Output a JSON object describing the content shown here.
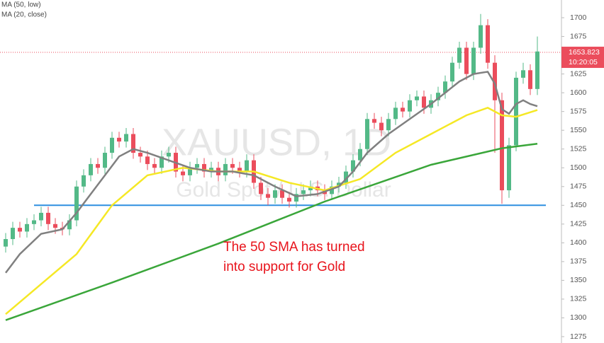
{
  "chart_data": {
    "type": "candlestick",
    "watermark": "XAUUSD, 1D",
    "watermark_subtitle": "Gold Spot / U.S. Dollar",
    "annotation": [
      "The 50 SMA has turned",
      "into support for Gold"
    ],
    "annotation_color": "#e8141c",
    "up_color": "#53b987",
    "down_color": "#eb4d5c",
    "ylim": [
      1266.5,
      1723.6
    ],
    "yticks": [
      1275,
      1300,
      1325,
      1350,
      1375,
      1400,
      1425,
      1450,
      1475,
      1500,
      1525,
      1550,
      1575,
      1600,
      1625,
      1650,
      1675,
      1700
    ],
    "open": [
      1395,
      1405,
      1420,
      1415,
      1425,
      1430,
      1440,
      1425,
      1420,
      1418,
      1430,
      1475,
      1490,
      1505,
      1500,
      1520,
      1540,
      1535,
      1545,
      1520,
      1515,
      1505,
      1500,
      1515,
      1520,
      1495,
      1490,
      1500,
      1505,
      1495,
      1500,
      1490,
      1505,
      1500,
      1495,
      1510,
      1480,
      1465,
      1460,
      1470,
      1460,
      1455,
      1465,
      1470,
      1475,
      1470,
      1465,
      1475,
      1480,
      1495,
      1510,
      1525,
      1565,
      1560,
      1550,
      1565,
      1580,
      1575,
      1590,
      1595,
      1580,
      1590,
      1600,
      1615,
      1640,
      1660,
      1625,
      1660,
      1690,
      1640,
      1590,
      1470,
      1530,
      1620,
      1630,
      1605
    ],
    "high": [
      1413,
      1428,
      1428,
      1433,
      1438,
      1448,
      1448,
      1433,
      1428,
      1438,
      1483,
      1498,
      1513,
      1513,
      1528,
      1548,
      1548,
      1553,
      1553,
      1528,
      1523,
      1513,
      1523,
      1528,
      1528,
      1503,
      1508,
      1513,
      1513,
      1508,
      1508,
      1513,
      1513,
      1508,
      1518,
      1518,
      1488,
      1473,
      1478,
      1478,
      1468,
      1473,
      1478,
      1483,
      1483,
      1478,
      1483,
      1488,
      1503,
      1518,
      1533,
      1573,
      1573,
      1568,
      1573,
      1588,
      1588,
      1598,
      1603,
      1603,
      1598,
      1608,
      1623,
      1648,
      1668,
      1668,
      1668,
      1705,
      1698,
      1650,
      1600,
      1540,
      1628,
      1640,
      1638,
      1675
    ],
    "low": [
      1387,
      1397,
      1407,
      1407,
      1417,
      1422,
      1417,
      1412,
      1410,
      1410,
      1422,
      1467,
      1482,
      1492,
      1492,
      1512,
      1527,
      1527,
      1512,
      1507,
      1497,
      1492,
      1492,
      1507,
      1487,
      1482,
      1482,
      1492,
      1487,
      1487,
      1482,
      1482,
      1492,
      1487,
      1487,
      1472,
      1457,
      1450,
      1452,
      1452,
      1447,
      1447,
      1457,
      1462,
      1462,
      1457,
      1457,
      1467,
      1472,
      1487,
      1502,
      1517,
      1552,
      1542,
      1542,
      1557,
      1567,
      1567,
      1582,
      1572,
      1572,
      1582,
      1592,
      1607,
      1632,
      1617,
      1617,
      1652,
      1632,
      1520,
      1452,
      1460,
      1522,
      1612,
      1597,
      1597
    ],
    "close": [
      1405,
      1420,
      1415,
      1425,
      1430,
      1440,
      1425,
      1420,
      1418,
      1430,
      1475,
      1490,
      1505,
      1500,
      1520,
      1540,
      1535,
      1545,
      1520,
      1515,
      1505,
      1500,
      1515,
      1520,
      1495,
      1490,
      1500,
      1505,
      1495,
      1500,
      1490,
      1505,
      1500,
      1495,
      1510,
      1480,
      1465,
      1460,
      1470,
      1460,
      1455,
      1465,
      1470,
      1475,
      1470,
      1465,
      1475,
      1480,
      1495,
      1510,
      1525,
      1565,
      1560,
      1550,
      1565,
      1580,
      1575,
      1590,
      1595,
      1580,
      1590,
      1600,
      1615,
      1640,
      1660,
      1625,
      1660,
      1690,
      1640,
      1590,
      1470,
      1530,
      1620,
      1630,
      1605,
      1655
    ],
    "series": [
      {
        "name": "MA (50, low)",
        "color": "#f5e825",
        "x": [
          0,
          5,
          10,
          15,
          20,
          25,
          30,
          35,
          40,
          45,
          50,
          55,
          60,
          65,
          68,
          70,
          72,
          75
        ],
        "values": [
          1305,
          1345,
          1385,
          1450,
          1490,
          1500,
          1495,
          1495,
          1480,
          1470,
          1485,
          1520,
          1545,
          1570,
          1580,
          1570,
          1568,
          1577
        ]
      },
      {
        "name": "MA (20, close)",
        "color": "#808080",
        "x": [
          0,
          2,
          5,
          8,
          10,
          12,
          14,
          16,
          18,
          20,
          23,
          26,
          29,
          32,
          35,
          38,
          41,
          44,
          47,
          49,
          51,
          54,
          57,
          60,
          62,
          64,
          66,
          68,
          69,
          70,
          71,
          72,
          73,
          74,
          75
        ],
        "values": [
          1360,
          1385,
          1412,
          1418,
          1440,
          1465,
          1490,
          1515,
          1525,
          1520,
          1510,
          1500,
          1495,
          1495,
          1490,
          1475,
          1462,
          1465,
          1475,
          1495,
          1520,
          1545,
          1565,
          1585,
          1600,
          1615,
          1625,
          1628,
          1612,
          1578,
          1572,
          1585,
          1590,
          1585,
          1582
        ]
      },
      {
        "color": "#3aa63a",
        "x": [
          0,
          15,
          30,
          45,
          60,
          70,
          75
        ],
        "values": [
          1297,
          1347,
          1399,
          1455,
          1504,
          1526,
          1532
        ]
      }
    ],
    "support_line": {
      "value": 1450,
      "color": "#2e8fe0",
      "from": 4
    },
    "last_price": {
      "value": 1653.823,
      "label": "1653.823",
      "color": "#eb4d5c"
    },
    "countdown": "10:20:05"
  }
}
